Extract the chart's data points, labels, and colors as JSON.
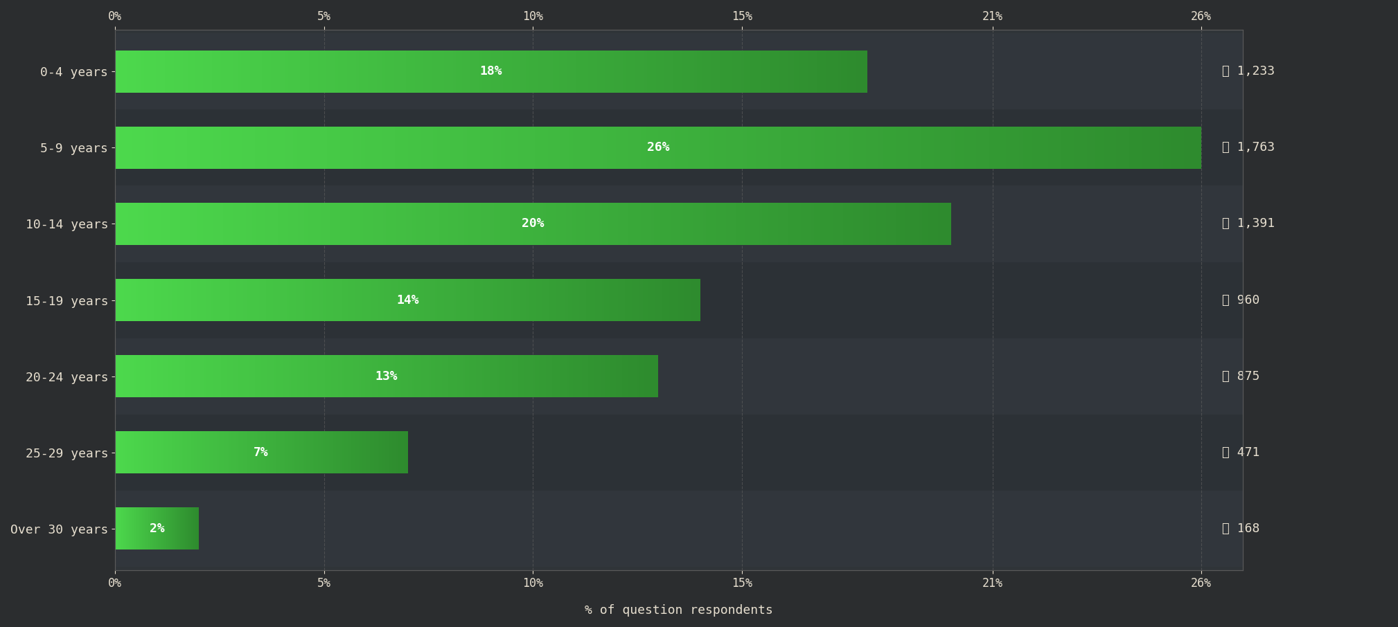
{
  "categories": [
    "0-4 years",
    "5-9 years",
    "10-14 years",
    "15-19 years",
    "20-24 years",
    "25-29 years",
    "Over 30 years"
  ],
  "values": [
    18,
    26,
    20,
    14,
    13,
    7,
    2
  ],
  "counts": [
    "1,233",
    "1,763",
    "1,391",
    "960",
    "875",
    "471",
    "168"
  ],
  "bar_color_left": "#4dd94d",
  "bar_color_right": "#2e8b2e",
  "background_color": "#2b2d2f",
  "plot_bg_color": "#2f3438",
  "text_color": "#e8e0d0",
  "grid_color": "#5a5a5a",
  "xlabel": "% of question respondents",
  "xlim": [
    0,
    27
  ],
  "xticks": [
    0,
    5,
    10,
    15,
    21,
    26
  ],
  "xtick_labels": [
    "0%",
    "5%",
    "10%",
    "15%",
    "21%",
    "26%"
  ],
  "bar_height": 0.55,
  "title_fontsize": 14,
  "label_fontsize": 13,
  "tick_fontsize": 12,
  "count_fontsize": 13
}
